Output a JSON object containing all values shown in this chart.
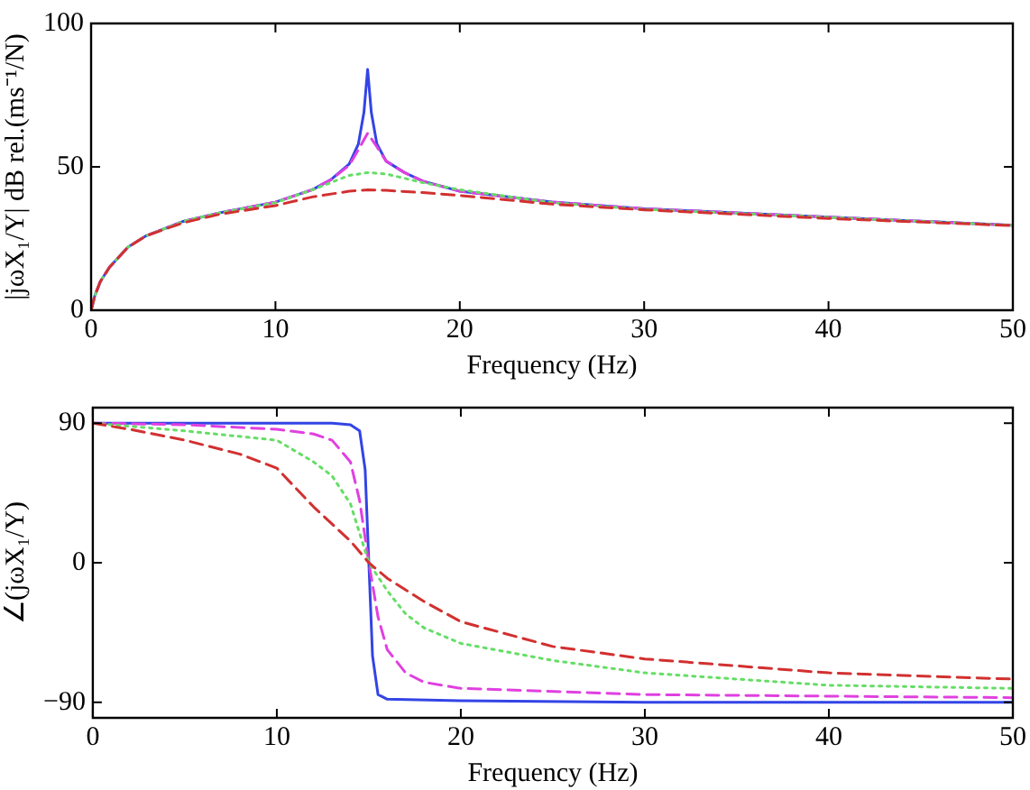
{
  "chart_data": [
    {
      "type": "line",
      "xlabel": "Frequency (Hz)",
      "ylabel": "|jωX₁/Y| dB rel.(ms⁻¹/N)",
      "xlim": [
        0,
        50
      ],
      "xticks": [
        0,
        10,
        20,
        30,
        40,
        50
      ],
      "ylim": [
        0,
        100
      ],
      "yticks": [
        0,
        50,
        100
      ],
      "grid": false,
      "legend": false,
      "marker": "none",
      "series": [
        {
          "color": "#3344e6",
          "line_style": "solid",
          "x": [
            0,
            0.2,
            0.5,
            1,
            2,
            3,
            5,
            7,
            10,
            12,
            13,
            14,
            14.5,
            14.8,
            15,
            15.2,
            15.5,
            16,
            17,
            18,
            20,
            25,
            30,
            40,
            50
          ],
          "values": [
            0,
            5,
            10,
            15,
            22,
            26,
            31,
            34,
            37.7,
            42,
            45.5,
            51,
            58,
            69,
            84,
            69,
            58,
            52,
            48,
            45,
            41.5,
            37.7,
            35.4,
            32.5,
            29.6
          ]
        },
        {
          "color": "#e040e0",
          "line_style": "dashed",
          "x": [
            0,
            0.2,
            0.5,
            1,
            2,
            3,
            5,
            7,
            10,
            12,
            13,
            14,
            14.5,
            15,
            15.5,
            16,
            17,
            18,
            20,
            25,
            30,
            40,
            50
          ],
          "values": [
            0,
            5,
            10,
            15,
            22,
            26,
            31,
            34,
            37.7,
            42,
            45.5,
            50.5,
            56,
            61.7,
            57,
            52,
            48,
            45,
            41.5,
            37.7,
            35.4,
            32.5,
            29.6
          ]
        },
        {
          "color": "#66dd66",
          "line_style": "dotted",
          "x": [
            0,
            0.2,
            0.5,
            1,
            2,
            3,
            5,
            7,
            10,
            12,
            13,
            14,
            15,
            16,
            17,
            18,
            20,
            25,
            30,
            40,
            50
          ],
          "values": [
            0,
            5,
            10,
            15,
            22,
            26,
            31,
            34,
            37.5,
            42,
            44.5,
            47,
            48,
            47.5,
            46,
            44.5,
            42,
            37.5,
            35.2,
            32.4,
            29.6
          ]
        },
        {
          "color": "#d23030",
          "line_style": "dashed",
          "x": [
            0,
            0.2,
            0.5,
            1,
            2,
            3,
            5,
            7,
            10,
            12,
            14,
            15,
            16,
            18,
            20,
            25,
            30,
            40,
            50
          ],
          "values": [
            0,
            5,
            10,
            15,
            22,
            26,
            30.5,
            33.5,
            36.5,
            39.5,
            41.5,
            42,
            41.8,
            41,
            40,
            37,
            35,
            32,
            29.5
          ]
        }
      ]
    },
    {
      "type": "line",
      "xlabel": "Frequency (Hz)",
      "ylabel": "∠(jωX₁/Y)",
      "xlim": [
        0,
        50
      ],
      "xticks": [
        0,
        10,
        20,
        30,
        40,
        50
      ],
      "ylim": [
        -100,
        100
      ],
      "yticks": [
        {
          "value": -90,
          "label": "−90"
        },
        0,
        90
      ],
      "grid": false,
      "legend": false,
      "marker": "none",
      "series": [
        {
          "color": "#3344e6",
          "line_style": "solid",
          "x": [
            0,
            5,
            10,
            13,
            14,
            14.5,
            14.8,
            15,
            15.2,
            15.5,
            16,
            20,
            30,
            50
          ],
          "values": [
            90,
            90,
            90,
            90,
            89,
            85,
            60,
            0,
            -60,
            -85,
            -88,
            -89,
            -90,
            -90
          ]
        },
        {
          "color": "#e040e0",
          "line_style": "dashed",
          "x": [
            0,
            5,
            10,
            12,
            13,
            14,
            14.5,
            15,
            15.5,
            16,
            17,
            18,
            20,
            30,
            50
          ],
          "values": [
            90,
            89,
            86,
            83,
            79,
            65,
            40,
            0,
            -35,
            -56,
            -71,
            -77,
            -81,
            -85,
            -87
          ]
        },
        {
          "color": "#66dd66",
          "line_style": "dotted",
          "x": [
            0,
            5,
            10,
            12,
            13,
            14,
            15,
            16,
            17,
            18,
            20,
            25,
            30,
            40,
            50
          ],
          "values": [
            90,
            85,
            79,
            65,
            56,
            38,
            0,
            -18,
            -33,
            -42,
            -52,
            -63,
            -71,
            -79,
            -81
          ]
        },
        {
          "color": "#d23030",
          "line_style": "dashed",
          "x": [
            0,
            2,
            5,
            8,
            10,
            12,
            14,
            15,
            16,
            18,
            20,
            25,
            30,
            40,
            50
          ],
          "values": [
            90,
            86,
            79,
            70,
            61,
            36,
            14,
            0,
            -10,
            -25,
            -38,
            -54,
            -62,
            -71,
            -75
          ]
        }
      ]
    }
  ]
}
